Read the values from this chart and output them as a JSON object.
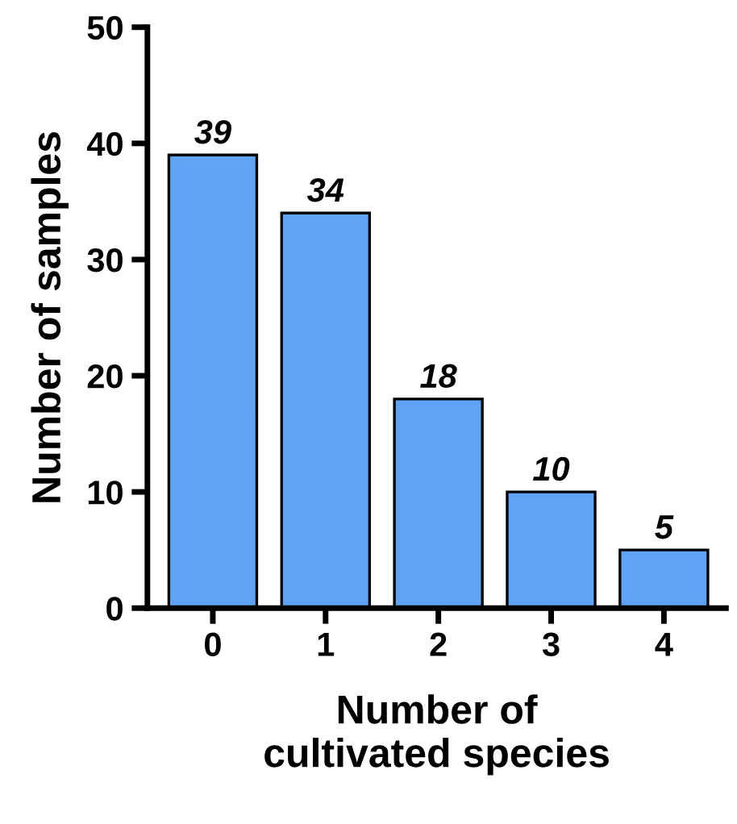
{
  "chart_data": {
    "type": "bar",
    "xlabel": "Number of\ncultivated species",
    "ylabel": "Number of samples",
    "categories": [
      "0",
      "1",
      "2",
      "3",
      "4"
    ],
    "values": [
      39,
      34,
      18,
      10,
      5
    ],
    "color": "#5fa3f5",
    "ylim": [
      0,
      50
    ],
    "yticks": [
      0,
      10,
      20,
      30,
      40,
      50
    ],
    "data_labels": true
  }
}
